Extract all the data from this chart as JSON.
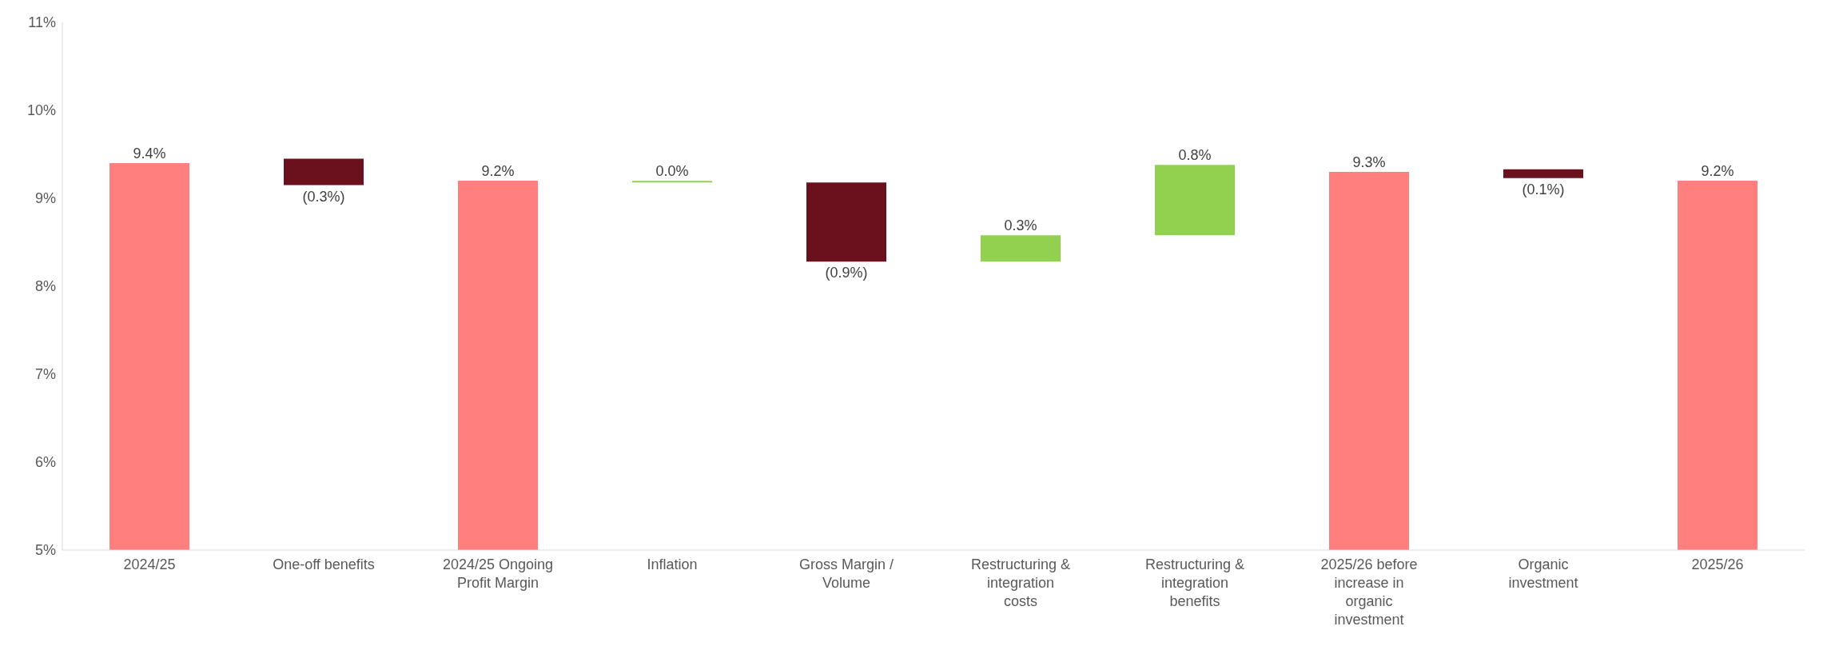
{
  "chart_data": {
    "type": "bar",
    "categories": [
      "2024/25",
      "One-off benefits",
      "2024/25 Ongoing Profit Margin",
      "Inflation",
      "Gross Margin / Volume",
      "Restructuring & integration costs",
      "Restructuring & integration benefits",
      "2025/26 before increase in organic investment",
      "Organic investment",
      "2025/26"
    ],
    "values": [
      9.4,
      -0.3,
      9.2,
      0.0,
      -0.9,
      0.3,
      0.8,
      9.3,
      -0.1,
      9.2
    ],
    "base": [
      0,
      9.45,
      0,
      9.18,
      9.18,
      8.28,
      8.58,
      0,
      9.33,
      0
    ],
    "colors": [
      "#ff7f7f",
      "#6b111d",
      "#ff7f7f",
      "#92d050",
      "#6b111d",
      "#92d050",
      "#92d050",
      "#ff7f7f",
      "#6b111d",
      "#ff7f7f"
    ],
    "value_labels": [
      "9.4%",
      "(0.3%)",
      "9.2%",
      "0.0%",
      "(0.9%)",
      "0.3%",
      "0.8%",
      "9.3%",
      "(0.1%)",
      "9.2%"
    ],
    "ylim": [
      5,
      11
    ],
    "yticks": [
      {
        "value": 5,
        "label": "5%"
      },
      {
        "value": 6,
        "label": "6%"
      },
      {
        "value": 7,
        "label": "7%"
      },
      {
        "value": 8,
        "label": "8%"
      },
      {
        "value": 9,
        "label": "9%"
      },
      {
        "value": 10,
        "label": "10%"
      },
      {
        "value": 11,
        "label": "11%"
      }
    ],
    "grid": false,
    "legend": false
  }
}
